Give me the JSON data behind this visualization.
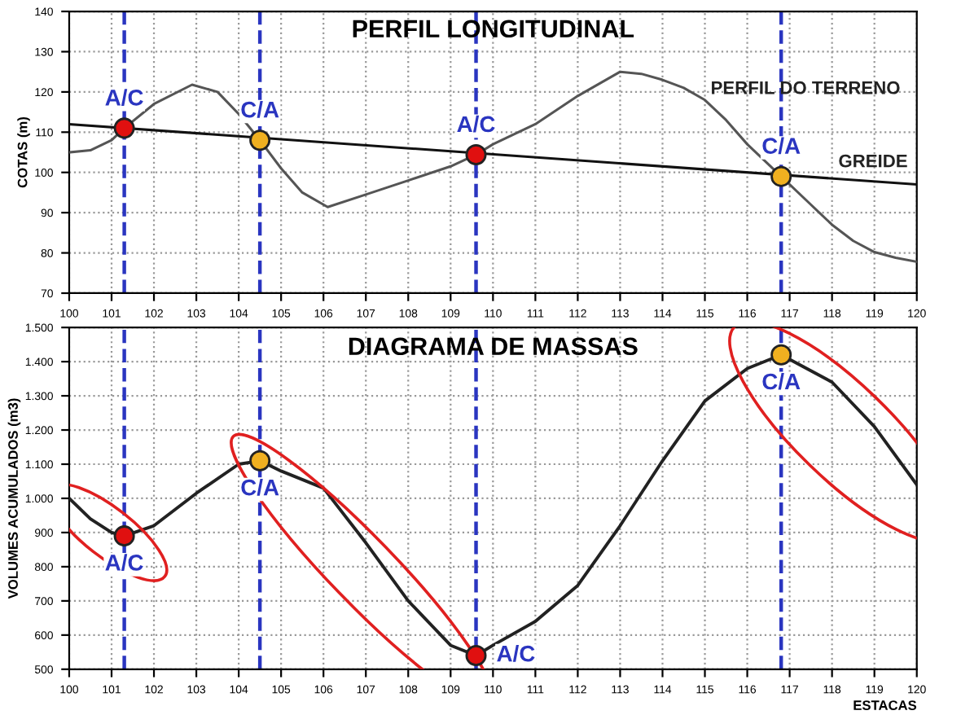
{
  "chart_data": [
    {
      "type": "line",
      "title": "PERFIL LONGITUDINAL",
      "ylabel": "COTAS (m)",
      "xlim": [
        100,
        120
      ],
      "xticks": [
        100,
        101,
        102,
        103,
        104,
        105,
        106,
        107,
        108,
        109,
        110,
        111,
        112,
        113,
        114,
        115,
        116,
        117,
        118,
        119,
        120
      ],
      "ylim": [
        70,
        140
      ],
      "yticks": [
        70,
        80,
        90,
        100,
        110,
        120,
        130,
        140
      ],
      "grid": true,
      "marker": "none",
      "line_style": "solid",
      "series": [
        {
          "name": "PERFIL DO TERRENO",
          "color": "#555555",
          "x": [
            100,
            100.5,
            101,
            101.3,
            102,
            102.9,
            103.5,
            104,
            104.5,
            105,
            105.5,
            106.1,
            107,
            108,
            109,
            109.6,
            110,
            111,
            112,
            113,
            113.5,
            114,
            114.5,
            115,
            115.5,
            116,
            116.8,
            117.5,
            118,
            118.5,
            119,
            119.5,
            120
          ],
          "values": [
            105,
            105.5,
            108,
            111,
            117,
            121.8,
            120,
            114.5,
            108,
            101,
            95,
            91.4,
            94.5,
            98,
            101.5,
            104.4,
            107,
            112,
            119,
            125,
            124.5,
            123,
            121,
            118,
            113,
            107,
            99,
            92,
            87,
            83,
            80.2,
            78.8,
            77.8
          ]
        },
        {
          "name": "GREIDE",
          "color": "#111111",
          "x": [
            100,
            120
          ],
          "values": [
            112,
            97
          ]
        },
        {
          "type": "scatter",
          "marker": "circle",
          "x": [
            101.3,
            104.5,
            109.6,
            116.8
          ],
          "values": [
            111,
            108,
            104.4,
            99
          ],
          "colors": [
            "#e01010",
            "#f0b020",
            "#e01010",
            "#f0b020"
          ]
        }
      ],
      "annotations": [
        {
          "text": "A/C",
          "x": 101.3,
          "y": 111
        },
        {
          "text": "C/A",
          "x": 104.5,
          "y": 108
        },
        {
          "text": "A/C",
          "x": 109.6,
          "y": 104.4
        },
        {
          "text": "C/A",
          "x": 116.8,
          "y": 99
        }
      ],
      "ref_lines": [
        {
          "axis": "x",
          "value": 101.3,
          "color": "#2a35c0",
          "line_style": "dashed"
        },
        {
          "axis": "x",
          "value": 104.5,
          "color": "#2a35c0",
          "line_style": "dashed"
        },
        {
          "axis": "x",
          "value": 109.6,
          "color": "#2a35c0",
          "line_style": "dashed"
        },
        {
          "axis": "x",
          "value": 116.8,
          "color": "#2a35c0",
          "line_style": "dashed"
        }
      ]
    },
    {
      "type": "line",
      "title": "DIAGRAMA DE MASSAS",
      "ylabel": "VOLUMES ACUMULADOS (m3)",
      "xlabel": "ESTACAS",
      "xlim": [
        100,
        120
      ],
      "xticks": [
        100,
        101,
        102,
        103,
        104,
        105,
        106,
        107,
        108,
        109,
        110,
        111,
        112,
        113,
        114,
        115,
        116,
        117,
        118,
        119,
        120
      ],
      "ylim": [
        500,
        1500
      ],
      "yticks": [
        500,
        600,
        700,
        800,
        900,
        {
          "value": 1000,
          "label": "1.000"
        },
        {
          "value": 1100,
          "label": "1.100"
        },
        {
          "value": 1200,
          "label": "1.200"
        },
        {
          "value": 1300,
          "label": "1.300"
        },
        {
          "value": 1400,
          "label": "1.400"
        },
        {
          "value": 1500,
          "label": "1.500"
        }
      ],
      "grid": true,
      "marker": "none",
      "line_style": "solid",
      "series": [
        {
          "color": "#222222",
          "x": [
            100,
            100.5,
            101,
            101.3,
            102,
            103,
            104,
            104.5,
            105,
            106,
            107,
            108,
            109,
            109.6,
            110,
            111,
            112,
            113,
            114,
            115,
            116,
            116.8,
            118,
            119,
            120
          ],
          "values": [
            1000,
            940,
            900,
            890,
            920,
            1015,
            1100,
            1110,
            1080,
            1030,
            870,
            700,
            570,
            540,
            570,
            640,
            745,
            920,
            1110,
            1285,
            1380,
            1420,
            1340,
            1210,
            1040
          ]
        },
        {
          "type": "scatter",
          "marker": "circle",
          "x": [
            101.3,
            104.5,
            109.6,
            116.8
          ],
          "values": [
            890,
            1110,
            540,
            1420
          ],
          "colors": [
            "#e01010",
            "#f0b020",
            "#e01010",
            "#f0b020"
          ]
        }
      ],
      "annotations": [
        {
          "text": "A/C",
          "x": 101.3,
          "y": 890
        },
        {
          "text": "C/A",
          "x": 104.5,
          "y": 1110
        },
        {
          "text": "A/C",
          "x": 109.6,
          "y": 540
        },
        {
          "text": "C/A",
          "x": 116.8,
          "y": 1420
        }
      ],
      "ref_lines": [
        {
          "axis": "x",
          "value": 101.3,
          "color": "#2a35c0",
          "line_style": "dashed"
        },
        {
          "axis": "x",
          "value": 104.5,
          "color": "#2a35c0",
          "line_style": "dashed"
        },
        {
          "axis": "x",
          "value": 109.6,
          "color": "#2a35c0",
          "line_style": "dashed"
        },
        {
          "axis": "x",
          "value": 116.8,
          "color": "#2a35c0",
          "line_style": "dashed"
        }
      ]
    }
  ]
}
